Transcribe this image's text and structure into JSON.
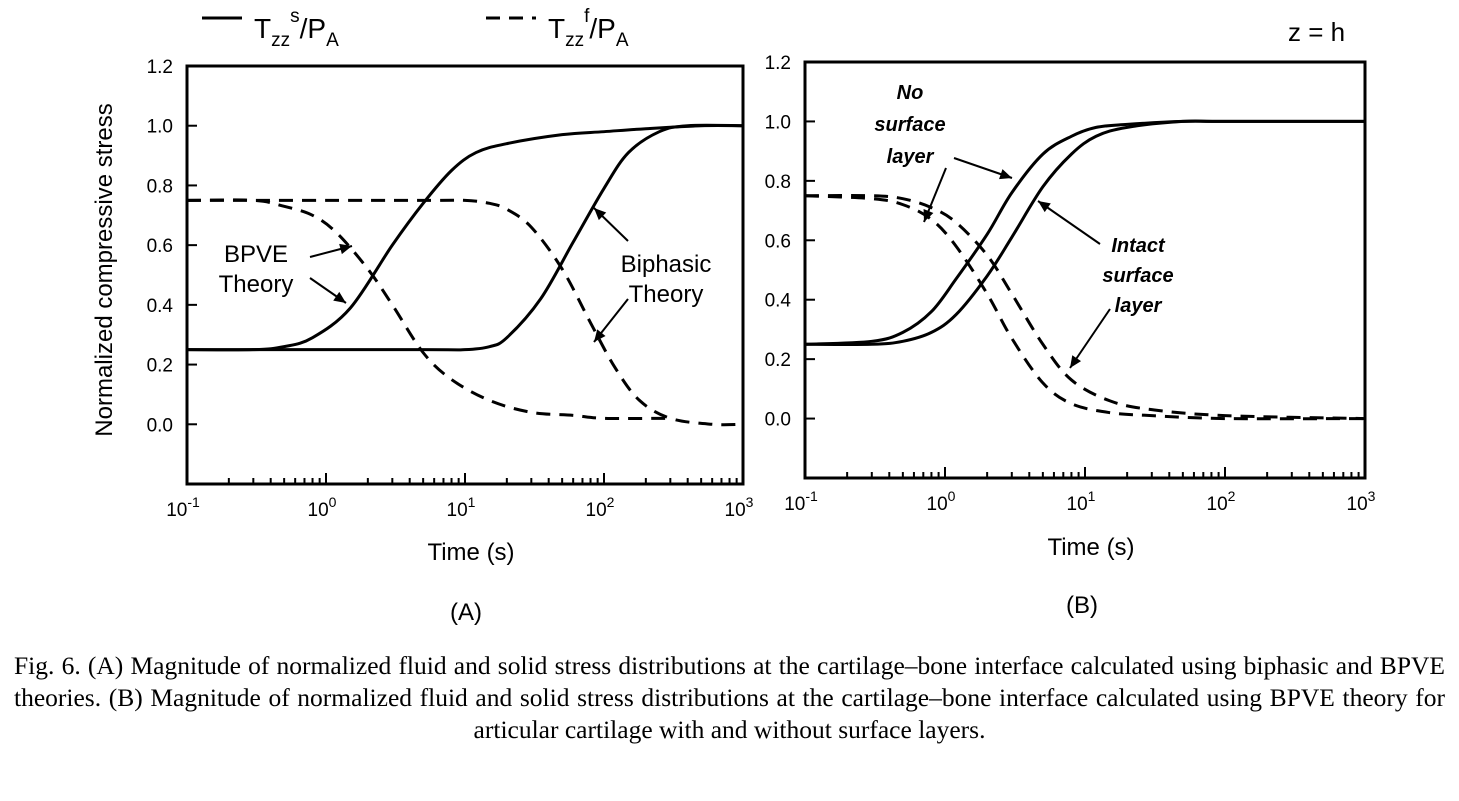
{
  "legend": {
    "solid": {
      "T": "T",
      "sub": "zz",
      "sup": "s",
      "tail": "/P",
      "tailsub": "A"
    },
    "dashed": {
      "T": "T",
      "sub": "zz",
      "sup": "f",
      "tail": "/P",
      "tailsub": "A"
    }
  },
  "panelB_condition": "z = h",
  "caption": "Fig. 6. (A) Magnitude of normalized fluid and solid stress distributions at the cartilage–bone interface calculated using biphasic and BPVE theories. (B) Magnitude of normalized fluid and solid stress distributions at the cartilage–bone interface calculated using BPVE theory for articular cartilage with and without surface layers.",
  "chart_data": [
    {
      "panel": "(A)",
      "type": "line",
      "xlabel": "Time (s)",
      "ylabel": "Normalized compressive stress",
      "xscale": "log",
      "xlim": [
        0.1,
        1000
      ],
      "ylim": [
        -0.2,
        1.2
      ],
      "xticks": [
        {
          "base": "10",
          "exp": "-1"
        },
        {
          "base": "10",
          "exp": "0"
        },
        {
          "base": "10",
          "exp": "1"
        },
        {
          "base": "10",
          "exp": "2"
        },
        {
          "base": "10",
          "exp": "3"
        }
      ],
      "yticks": [
        "1.2",
        "1.0",
        "0.8",
        "0.6",
        "0.4",
        "0.2",
        "0.0"
      ],
      "ytick_values": [
        1.2,
        1.0,
        0.8,
        0.6,
        0.4,
        0.2,
        0.0
      ],
      "annotations": [
        {
          "lines": [
            "BPVE",
            "Theory"
          ],
          "style": "normal"
        },
        {
          "lines": [
            "Biphasic",
            "Theory"
          ],
          "style": "normal"
        }
      ],
      "series": [
        {
          "style": "solid",
          "group": "BPVE",
          "x": [
            0.1,
            0.3,
            0.5,
            0.8,
            1.5,
            3,
            5,
            8,
            12,
            20,
            50,
            100,
            200,
            500,
            1000
          ],
          "y": [
            0.25,
            0.25,
            0.26,
            0.29,
            0.39,
            0.6,
            0.74,
            0.85,
            0.91,
            0.94,
            0.97,
            0.98,
            0.99,
            1.0,
            1.0
          ]
        },
        {
          "style": "dashed",
          "group": "BPVE",
          "x": [
            0.1,
            0.3,
            0.5,
            0.8,
            1.2,
            2,
            3,
            5,
            8,
            15,
            30,
            60,
            100,
            300
          ],
          "y": [
            0.75,
            0.75,
            0.73,
            0.7,
            0.64,
            0.52,
            0.4,
            0.24,
            0.15,
            0.08,
            0.04,
            0.03,
            0.02,
            0.02
          ]
        },
        {
          "style": "solid",
          "group": "Biphasic",
          "x": [
            0.1,
            5,
            10,
            15,
            20,
            35,
            60,
            100,
            150,
            250,
            400,
            1000
          ],
          "y": [
            0.25,
            0.25,
            0.25,
            0.26,
            0.29,
            0.42,
            0.61,
            0.79,
            0.91,
            0.98,
            1.0,
            1.0
          ]
        },
        {
          "style": "dashed",
          "group": "Biphasic",
          "x": [
            0.1,
            5,
            10,
            15,
            20,
            30,
            50,
            80,
            120,
            180,
            300,
            600,
            1000
          ],
          "y": [
            0.75,
            0.75,
            0.75,
            0.74,
            0.72,
            0.66,
            0.52,
            0.34,
            0.19,
            0.08,
            0.02,
            0.0,
            0.0
          ]
        }
      ]
    },
    {
      "panel": "(B)",
      "type": "line",
      "xlabel": "Time (s)",
      "ylabel": "",
      "xscale": "log",
      "xlim": [
        0.1,
        1000
      ],
      "ylim": [
        -0.2,
        1.2
      ],
      "xticks": [
        {
          "base": "10",
          "exp": "-1"
        },
        {
          "base": "10",
          "exp": "0"
        },
        {
          "base": "10",
          "exp": "1"
        },
        {
          "base": "10",
          "exp": "2"
        },
        {
          "base": "10",
          "exp": "3"
        }
      ],
      "yticks": [
        "1.2",
        "1.0",
        "0.8",
        "0.6",
        "0.4",
        "0.2",
        "0.0"
      ],
      "ytick_values": [
        1.2,
        1.0,
        0.8,
        0.6,
        0.4,
        0.2,
        0.0
      ],
      "annotations": [
        {
          "lines": [
            "No",
            "surface",
            "layer"
          ],
          "style": "italic"
        },
        {
          "lines": [
            "Intact",
            "surface",
            "layer"
          ],
          "style": "italic"
        }
      ],
      "series": [
        {
          "style": "solid",
          "group": "No surface layer",
          "x": [
            0.1,
            0.3,
            0.5,
            0.8,
            1.2,
            2,
            3,
            5,
            8,
            12,
            20,
            50,
            100,
            1000
          ],
          "y": [
            0.25,
            0.26,
            0.29,
            0.36,
            0.47,
            0.62,
            0.76,
            0.89,
            0.95,
            0.98,
            0.99,
            1.0,
            1.0,
            1.0
          ]
        },
        {
          "style": "solid",
          "group": "Intact surface layer",
          "x": [
            0.1,
            0.3,
            0.5,
            0.8,
            1.2,
            2,
            3,
            5,
            8,
            12,
            20,
            50,
            100,
            1000
          ],
          "y": [
            0.25,
            0.25,
            0.26,
            0.29,
            0.35,
            0.48,
            0.61,
            0.78,
            0.89,
            0.95,
            0.98,
            1.0,
            1.0,
            1.0
          ]
        },
        {
          "style": "dashed",
          "group": "No surface layer",
          "x": [
            0.1,
            0.3,
            0.5,
            0.8,
            1.2,
            2,
            3,
            5,
            8,
            15,
            30,
            100,
            1000
          ],
          "y": [
            0.75,
            0.74,
            0.72,
            0.67,
            0.58,
            0.42,
            0.27,
            0.12,
            0.05,
            0.02,
            0.01,
            0.0,
            0.0
          ]
        },
        {
          "style": "dashed",
          "group": "Intact surface layer",
          "x": [
            0.1,
            0.3,
            0.5,
            0.8,
            1.2,
            2,
            3,
            5,
            8,
            15,
            30,
            100,
            1000
          ],
          "y": [
            0.75,
            0.75,
            0.74,
            0.71,
            0.66,
            0.55,
            0.42,
            0.25,
            0.13,
            0.06,
            0.03,
            0.01,
            0.0
          ]
        }
      ]
    }
  ]
}
